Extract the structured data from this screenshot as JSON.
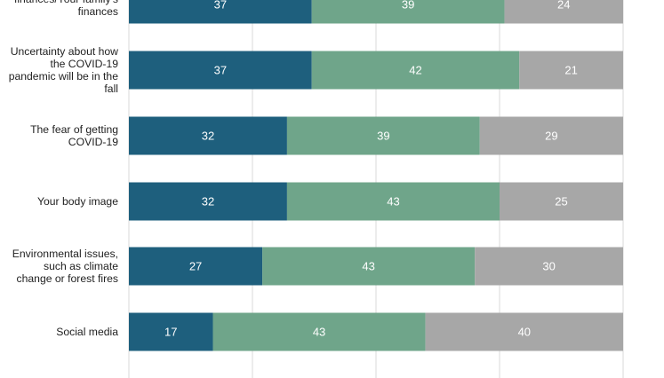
{
  "chart_data": {
    "type": "bar",
    "orientation": "horizontal",
    "stacked": true,
    "categories": [
      "Money issues, such as your finances/Your family's finances",
      "Uncertainty about how the COVID-19 pandemic will be in the fall",
      "The fear of getting COVID-19",
      "Your body image",
      "Environmental issues, such as climate change or forest fires",
      "Social media"
    ],
    "series": [
      {
        "color": "#1e5f7d",
        "values": [
          37,
          37,
          32,
          32,
          27,
          17
        ]
      },
      {
        "color": "#6fa58a",
        "values": [
          39,
          42,
          39,
          43,
          43,
          43
        ]
      },
      {
        "color": "#a7a7a7",
        "values": [
          24,
          21,
          29,
          25,
          30,
          40
        ]
      }
    ],
    "xlim": [
      0,
      100
    ],
    "grid": true,
    "colors": {
      "grid": "#d9d9d9",
      "label_text": "#222222",
      "value_text": "#ffffff"
    }
  }
}
